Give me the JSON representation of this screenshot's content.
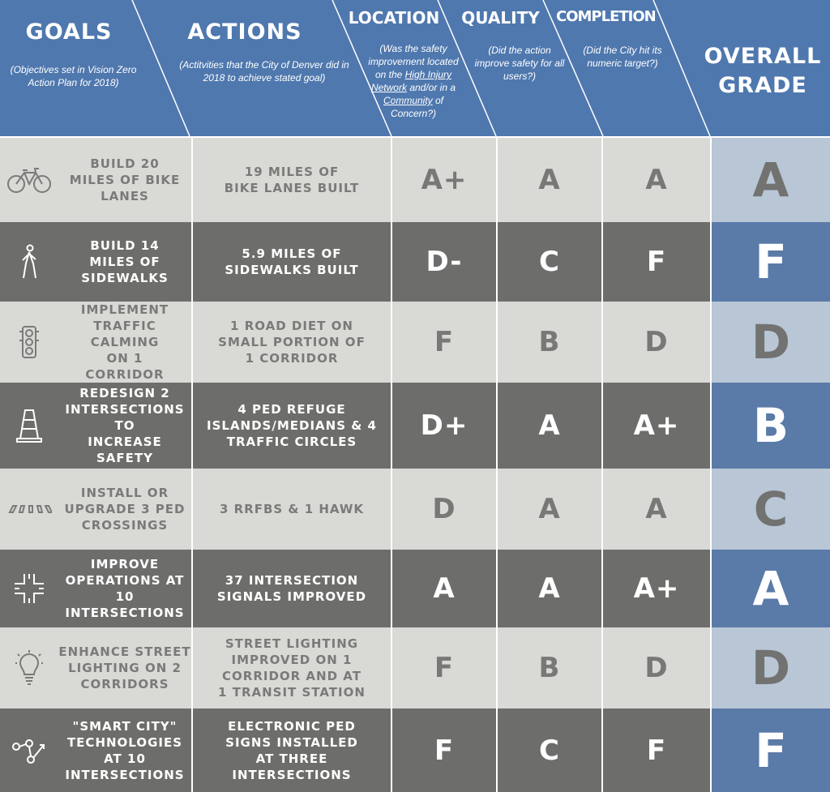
{
  "header": {
    "goals_title": "GOALS",
    "goals_sub": "(Objectives set in Vision Zero Action Plan  for 2018)",
    "actions_title": "ACTIONS",
    "actions_sub": "(Actitvities that the City of Denver did in 2018 to achieve stated goal)",
    "location_title": "LOCATION",
    "location_sub_1": "(Was the safety improvement located on the ",
    "location_sub_link1": "High Injury Network",
    "location_sub_2": " and/or in a ",
    "location_sub_link2": "Community",
    "location_sub_3": " of Concern?)",
    "quality_title": "QUALITY",
    "quality_sub": "(Did the action improve safety for all users?)",
    "completion_title": "COMPLETION",
    "completion_sub": "(Did the City hit its numeric target?)",
    "overall_title": "OVERALL\nGRADE"
  },
  "colors": {
    "header_blue": "#4f78ae",
    "row_light": "#d9d9d5",
    "row_dark": "#6d6d6b",
    "overall_light": "#b8c6d6",
    "overall_dark": "#5a7aa8"
  },
  "rows": [
    {
      "icon": "bicycle-icon",
      "goal": "BUILD 20\nMILES OF BIKE\nLANES",
      "action": "19 MILES OF\nBIKE LANES BUILT",
      "location": "A+",
      "quality": "A",
      "completion": "A",
      "overall": "A"
    },
    {
      "icon": "pedestrian-icon",
      "goal": "BUILD 14\nMILES OF\nSIDEWALKS",
      "action": "5.9 MILES OF\nSIDEWALKS BUILT",
      "location": "D-",
      "quality": "C",
      "completion": "F",
      "overall": "F"
    },
    {
      "icon": "traffic-light-icon",
      "goal": "IMPLEMENT\nTRAFFIC CALMING\nON 1\nCORRIDOR",
      "action": "1 ROAD DIET ON\nSMALL PORTION OF\n1 CORRIDOR",
      "location": "F",
      "quality": "B",
      "completion": "D",
      "overall": "D"
    },
    {
      "icon": "traffic-cone-icon",
      "goal": "REDESIGN 2\nINTERSECTIONS TO\nINCREASE SAFETY",
      "action": "4 PED REFUGE\nISLANDS/MEDIANS & 4\nTRAFFIC CIRCLES",
      "location": "D+",
      "quality": "A",
      "completion": "A+",
      "overall": "B"
    },
    {
      "icon": "crosswalk-icon",
      "goal": "INSTALL OR\nUPGRADE 3 PED\nCROSSINGS",
      "action": "3 RRFBS & 1 HAWK",
      "location": "D",
      "quality": "A",
      "completion": "A",
      "overall": "C"
    },
    {
      "icon": "intersection-icon",
      "goal": "IMPROVE\nOPERATIONS AT 10\nINTERSECTIONS",
      "action": "37 INTERSECTION\nSIGNALS IMPROVED",
      "location": "A",
      "quality": "A",
      "completion": "A+",
      "overall": "A"
    },
    {
      "icon": "lightbulb-icon",
      "goal": "ENHANCE STREET\nLIGHTING ON 2\nCORRIDORS",
      "action": "STREET LIGHTING\nIMPROVED ON 1\nCORRIDOR AND AT\n1 TRANSIT STATION",
      "location": "F",
      "quality": "B",
      "completion": "D",
      "overall": "D"
    },
    {
      "icon": "network-nodes-icon",
      "goal": "\"SMART CITY\"\nTECHNOLOGIES\nAT 10\nINTERSECTIONS",
      "action": "ELECTRONIC PED\nSIGNS INSTALLED\nAT THREE\nINTERSECTIONS",
      "location": "F",
      "quality": "C",
      "completion": "F",
      "overall": "F"
    }
  ]
}
